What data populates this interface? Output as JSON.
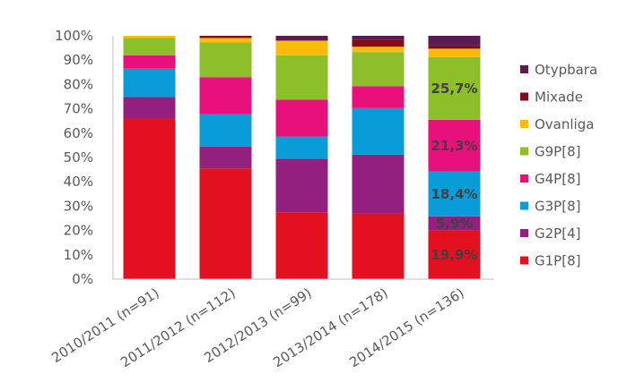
{
  "chart_data": {
    "type": "bar",
    "stacked": true,
    "percent_stacked": true,
    "title": "",
    "xlabel": "",
    "ylabel": "",
    "ylim": [
      0,
      100
    ],
    "y_ticks": [
      "0%",
      "10%",
      "20%",
      "30%",
      "40%",
      "50%",
      "60%",
      "70%",
      "80%",
      "90%",
      "100%"
    ],
    "grid": false,
    "legend_position": "right",
    "categories": [
      "2010/2011 (n=91)",
      "2011/2012 (n=112)",
      "2012/2013 (n=99)",
      "2013/2014 (n=178)",
      "2014/2015 (n=136)"
    ],
    "series": [
      {
        "name": "G1P[8]",
        "color": "#e3101f",
        "values": [
          66.0,
          45.5,
          27.3,
          27.0,
          19.9
        ]
      },
      {
        "name": "G2P[4]",
        "color": "#93207e",
        "values": [
          8.8,
          8.9,
          22.2,
          24.2,
          5.9
        ]
      },
      {
        "name": "G3P[8]",
        "color": "#0a9bd9",
        "values": [
          11.7,
          13.4,
          9.1,
          19.1,
          18.4
        ]
      },
      {
        "name": "G4P[8]",
        "color": "#e8107a",
        "values": [
          5.5,
          15.2,
          15.2,
          9.0,
          21.3
        ]
      },
      {
        "name": "G9P[8]",
        "color": "#8cbf2a",
        "values": [
          7.1,
          14.3,
          18.2,
          14.0,
          25.7
        ]
      },
      {
        "name": "Ovanliga",
        "color": "#fbbb0c",
        "values": [
          0.9,
          1.8,
          6.0,
          2.2,
          3.5
        ]
      },
      {
        "name": "Mixade",
        "color": "#830b1a",
        "values": [
          0.0,
          0.9,
          0.0,
          2.8,
          1.3
        ]
      },
      {
        "name": "Otypbara",
        "color": "#5a1a52",
        "values": [
          0.0,
          0.0,
          2.0,
          1.7,
          4.0
        ]
      }
    ],
    "data_labels": [
      {
        "category_index": 4,
        "series_index": 0,
        "text": "19,9%"
      },
      {
        "category_index": 4,
        "series_index": 1,
        "text": "5,9%"
      },
      {
        "category_index": 4,
        "series_index": 2,
        "text": "18,4%"
      },
      {
        "category_index": 4,
        "series_index": 3,
        "text": "21,3%"
      },
      {
        "category_index": 4,
        "series_index": 4,
        "text": "25,7%"
      }
    ]
  }
}
